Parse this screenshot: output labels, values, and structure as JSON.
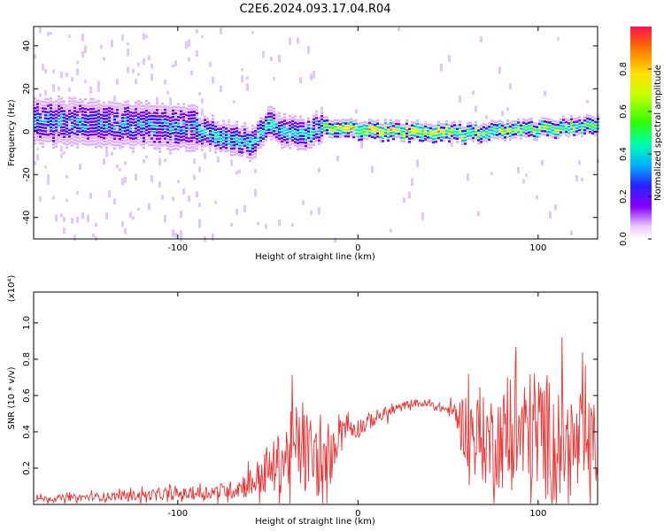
{
  "title": "C2E6.2024.093.17.04.R04",
  "chart_data": [
    {
      "type": "heatmap",
      "xlabel": "Height of straight line (km)",
      "ylabel": "Frequency (Hz)",
      "xlim": [
        -180,
        133
      ],
      "ylim": [
        -50,
        49
      ],
      "x_ticks": [
        -100,
        0,
        100
      ],
      "y_ticks": [
        -40,
        -20,
        0,
        20,
        40
      ],
      "colorbar": {
        "label": "Normalized spectral amplitude",
        "range": [
          0.0,
          1.0
        ],
        "ticks": [
          "0.0",
          "0.2",
          "0.4",
          "0.6",
          "0.8"
        ],
        "colors": [
          "#ffffff",
          "#e0b0ff",
          "#8000ff",
          "#2020ff",
          "#00c0ff",
          "#00ffa0",
          "#40ff00",
          "#c0ff00",
          "#ffe000",
          "#ff8000",
          "#ff1040"
        ]
      },
      "ridge": {
        "description_points_x": [
          -180,
          -150,
          -120,
          -90,
          -70,
          -60,
          -50,
          -40,
          -30,
          -20,
          -10,
          0,
          20,
          40,
          60,
          80,
          100,
          120,
          133
        ],
        "center_freq": [
          5,
          4,
          3,
          1,
          -3,
          -6,
          4,
          0,
          -2,
          2,
          2,
          1,
          0,
          0,
          -1,
          0,
          1,
          2,
          3
        ]
      }
    },
    {
      "type": "line",
      "xlabel": "Height of straight line (km)",
      "ylabel": "SNR (10 * v/v)",
      "y_multiplier": "(x10⁴)",
      "xlim": [
        -180,
        133
      ],
      "ylim": [
        0,
        1.17
      ],
      "x_ticks": [
        -100,
        0,
        100
      ],
      "y_ticks": [
        "0.2",
        "0.4",
        "0.6",
        "0.8",
        "1.0"
      ],
      "color": "#ee3333",
      "envelope": {
        "x": [
          -180,
          -150,
          -120,
          -90,
          -70,
          -60,
          -50,
          -40,
          -35,
          -30,
          -25,
          -20,
          -15,
          -10,
          0,
          10,
          20,
          30,
          40,
          50,
          55,
          60,
          70,
          80,
          90,
          100,
          110,
          120,
          133
        ],
        "mean": [
          0.03,
          0.04,
          0.05,
          0.06,
          0.08,
          0.12,
          0.18,
          0.26,
          0.32,
          0.3,
          0.28,
          0.18,
          0.25,
          0.44,
          0.42,
          0.48,
          0.52,
          0.56,
          0.55,
          0.52,
          0.5,
          0.42,
          0.35,
          0.36,
          0.38,
          0.4,
          0.35,
          0.3,
          0.32
        ],
        "spread": [
          0.02,
          0.03,
          0.04,
          0.05,
          0.07,
          0.12,
          0.18,
          0.28,
          0.35,
          0.32,
          0.32,
          0.25,
          0.2,
          0.12,
          0.08,
          0.06,
          0.04,
          0.03,
          0.03,
          0.04,
          0.1,
          0.3,
          0.35,
          0.4,
          0.45,
          0.55,
          0.45,
          0.4,
          0.35
        ]
      }
    }
  ]
}
